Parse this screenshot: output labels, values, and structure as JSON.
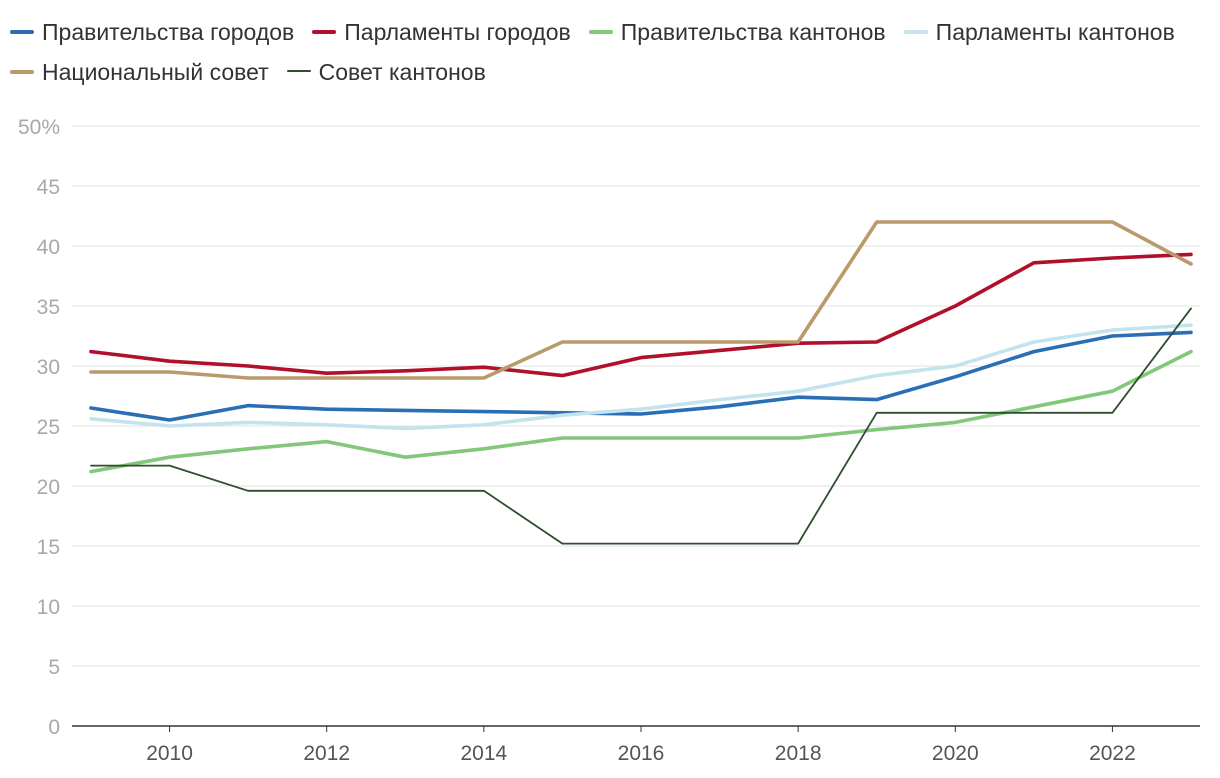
{
  "chart_data": {
    "type": "line",
    "title": "",
    "xlabel": "",
    "ylabel": "",
    "x": [
      2009,
      2010,
      2011,
      2012,
      2013,
      2014,
      2015,
      2016,
      2017,
      2018,
      2019,
      2020,
      2021,
      2022,
      2023
    ],
    "xlim": [
      2009,
      2023
    ],
    "ylim": [
      0,
      50
    ],
    "y_ticks": [
      "0",
      "5",
      "10",
      "15",
      "20",
      "25",
      "30",
      "35",
      "40",
      "45",
      "50%"
    ],
    "x_ticks": [
      "2010",
      "2012",
      "2014",
      "2016",
      "2018",
      "2020",
      "2022"
    ],
    "grid": "horizontal",
    "legend_position": "top",
    "series": [
      {
        "name": "Правительства городов",
        "color": "#2a6eb5",
        "stroke": "thick",
        "values": [
          26.5,
          25.5,
          26.7,
          26.4,
          26.3,
          26.2,
          26.1,
          26.0,
          26.6,
          27.4,
          27.2,
          29.1,
          31.2,
          32.5,
          32.8
        ]
      },
      {
        "name": "Парламенты городов",
        "color": "#b0102c",
        "stroke": "thick",
        "values": [
          31.2,
          30.4,
          30.0,
          29.4,
          29.6,
          29.9,
          29.2,
          30.7,
          31.3,
          31.9,
          32.0,
          35.0,
          38.6,
          39.0,
          39.3
        ]
      },
      {
        "name": "Правительства кантонов",
        "color": "#82c77a",
        "stroke": "thick",
        "values": [
          21.2,
          22.4,
          23.1,
          23.7,
          22.4,
          23.1,
          24.0,
          24.0,
          24.0,
          24.0,
          24.7,
          25.3,
          26.6,
          27.9,
          31.2
        ]
      },
      {
        "name": "Парламенты кантонов",
        "color": "#c3e3ef",
        "stroke": "thick",
        "values": [
          25.6,
          25.0,
          25.3,
          25.1,
          24.8,
          25.1,
          25.9,
          26.4,
          27.2,
          27.9,
          29.2,
          30.0,
          32.0,
          33.0,
          33.4
        ]
      },
      {
        "name": "Национальный совет",
        "color": "#b99a6a",
        "stroke": "thick",
        "values": [
          29.5,
          29.5,
          29.0,
          29.0,
          29.0,
          29.0,
          32.0,
          32.0,
          32.0,
          32.0,
          42.0,
          42.0,
          42.0,
          42.0,
          38.5
        ]
      },
      {
        "name": "Совет кантонов",
        "color": "#2e4e2e",
        "stroke": "thin",
        "values": [
          21.7,
          21.7,
          19.6,
          19.6,
          19.6,
          19.6,
          15.2,
          15.2,
          15.2,
          15.2,
          26.1,
          26.1,
          26.1,
          26.1,
          34.8
        ]
      }
    ]
  }
}
